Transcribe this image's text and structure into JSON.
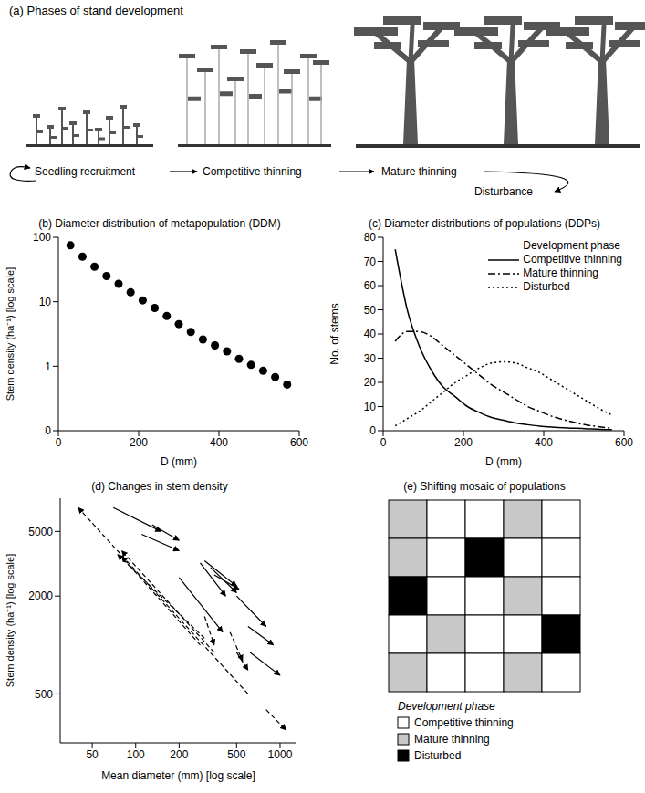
{
  "chart_data": [
    {
      "type": "diagram",
      "title": "(a) Phases of stand development",
      "phases": [
        "Seedling recruitment",
        "Competitive thinning",
        "Mature thinning"
      ],
      "disturbance": "Disturbance"
    },
    {
      "type": "scatter",
      "title": "(b) Diameter distribution of metapopulation (DDM)",
      "xlabel": "D (mm)",
      "ylabel": "Stem density (ha⁻¹) [log scale]",
      "log": "y",
      "color": "#000000",
      "marker": "circle",
      "x": [
        30,
        60,
        90,
        120,
        150,
        180,
        210,
        240,
        270,
        300,
        330,
        360,
        390,
        420,
        450,
        480,
        510,
        540,
        570
      ],
      "values": [
        75,
        50,
        35,
        25,
        19,
        14,
        10.5,
        8,
        6,
        4.5,
        3.4,
        2.6,
        2.1,
        1.7,
        1.3,
        1.05,
        0.85,
        0.68,
        0.52
      ],
      "xlim": [
        0,
        600
      ],
      "xticks": [
        0,
        200,
        400,
        600
      ],
      "ylim": [
        0.1,
        100
      ],
      "yticks": [
        {
          "value": 0.1,
          "label": "0"
        },
        1,
        10,
        100
      ]
    },
    {
      "type": "line",
      "title": "(c) Diameter distributions of populations (DDPs)",
      "xlabel": "D (mm)",
      "ylabel": "No. of stems",
      "legend": "upper right",
      "legend_title": "Development phase",
      "x": [
        30,
        60,
        90,
        120,
        150,
        180,
        210,
        240,
        270,
        300,
        330,
        360,
        390,
        420,
        450,
        480,
        510,
        540,
        570
      ],
      "series": [
        {
          "name": "Competitive thinning",
          "color": "#000000",
          "line_style": "solid",
          "values": [
            75,
            50,
            35,
            25,
            18,
            14,
            10,
            7.5,
            5.5,
            4.3,
            3.2,
            2.5,
            1.9,
            1.5,
            1.2,
            1,
            0.8,
            0.6,
            0.5
          ]
        },
        {
          "name": "Mature thinning",
          "color": "#000000",
          "line_style": "dash-dot",
          "values": [
            37,
            41,
            41,
            39,
            35,
            31,
            27,
            23,
            19,
            16,
            13,
            10,
            8,
            6,
            4.5,
            3.3,
            2.3,
            1.6,
            1
          ]
        },
        {
          "name": "Disturbed",
          "color": "#000000",
          "line_style": "dotted",
          "values": [
            2,
            5,
            8,
            12,
            16,
            20,
            23,
            26,
            28,
            28.5,
            28,
            26,
            24,
            21,
            18,
            15,
            12,
            9,
            6.5
          ]
        }
      ],
      "xlim": [
        0,
        600
      ],
      "xticks": [
        0,
        200,
        400,
        600
      ],
      "ylim": [
        0,
        80
      ],
      "yticks": [
        0,
        10,
        20,
        30,
        40,
        50,
        60,
        70,
        80
      ]
    },
    {
      "type": "arrows",
      "title": "(d) Changes in stem density",
      "xlabel": "Mean diameter (mm) [log scale]",
      "ylabel": "Stem density (ha⁻¹) [log scale]",
      "log": true,
      "color": "#000000",
      "xlim": [
        30,
        1300
      ],
      "xticks": [
        50,
        100,
        200,
        500,
        1000
      ],
      "ylim": [
        250,
        8000
      ],
      "yticks": [
        500,
        2000,
        5000
      ],
      "arrows": [
        {
          "from": [
            70,
            7000
          ],
          "to": [
            150,
            5000
          ],
          "line_style": "solid"
        },
        {
          "from": [
            130,
            5500
          ],
          "to": [
            200,
            4400
          ],
          "line_style": "solid"
        },
        {
          "from": [
            110,
            4800
          ],
          "to": [
            200,
            3800
          ],
          "line_style": "solid"
        },
        {
          "from": [
            280,
            3200
          ],
          "to": [
            420,
            2000
          ],
          "line_style": "solid"
        },
        {
          "from": [
            300,
            3300
          ],
          "to": [
            500,
            2300
          ],
          "line_style": "solid"
        },
        {
          "from": [
            330,
            3000
          ],
          "to": [
            500,
            2100
          ],
          "line_style": "solid"
        },
        {
          "from": [
            350,
            2700
          ],
          "to": [
            520,
            2200
          ],
          "line_style": "solid"
        },
        {
          "from": [
            200,
            2600
          ],
          "to": [
            400,
            1200
          ],
          "line_style": "solid"
        },
        {
          "from": [
            500,
            2000
          ],
          "to": [
            800,
            1300
          ],
          "line_style": "solid"
        },
        {
          "from": [
            600,
            1300
          ],
          "to": [
            900,
            1000
          ],
          "line_style": "solid"
        },
        {
          "from": [
            620,
            900
          ],
          "to": [
            1000,
            650
          ],
          "line_style": "solid"
        },
        {
          "from": [
            600,
            500
          ],
          "to": [
            40,
            7000
          ],
          "line_style": "dashed"
        },
        {
          "from": [
            350,
            900
          ],
          "to": [
            80,
            3800
          ],
          "line_style": "dashed"
        },
        {
          "from": [
            300,
            1100
          ],
          "to": [
            75,
            3600
          ],
          "line_style": "dashed"
        },
        {
          "from": [
            280,
            1000
          ],
          "to": [
            80,
            3500
          ],
          "line_style": "dashed"
        },
        {
          "from": [
            300,
            1500
          ],
          "to": [
            350,
            1000
          ],
          "line_style": "dashed"
        },
        {
          "from": [
            450,
            1200
          ],
          "to": [
            550,
            800
          ],
          "line_style": "dashed"
        },
        {
          "from": [
            500,
            900
          ],
          "to": [
            600,
            700
          ],
          "line_style": "dashed"
        },
        {
          "from": [
            800,
            400
          ],
          "to": [
            1100,
            300
          ],
          "line_style": "dashed"
        }
      ]
    },
    {
      "type": "mosaic",
      "title": "(e) Shifting mosaic of populations",
      "legend_title": "Development phase",
      "categories": [
        "Competitive thinning",
        "Mature thinning",
        "Disturbed"
      ],
      "colors": [
        "#ffffff",
        "#c8c8c8",
        "#000000"
      ],
      "cells": [
        [
          1,
          0,
          0,
          1,
          0
        ],
        [
          1,
          0,
          2,
          0,
          0
        ],
        [
          2,
          0,
          0,
          1,
          0
        ],
        [
          0,
          1,
          0,
          0,
          2
        ],
        [
          1,
          0,
          0,
          1,
          0
        ]
      ]
    }
  ]
}
